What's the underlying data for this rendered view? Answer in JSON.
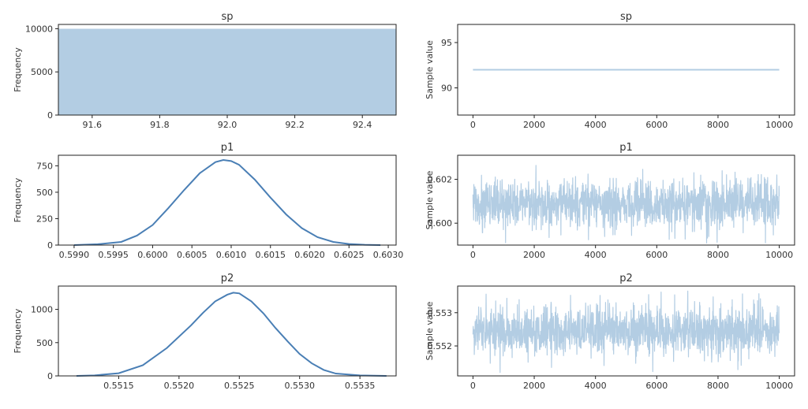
{
  "chart_data": [
    {
      "type": "bar",
      "title": "sp",
      "xlabel": "",
      "ylabel": "Frequency",
      "xlim": [
        91.5,
        92.5
      ],
      "ylim": [
        0,
        10500
      ],
      "xticks": [
        91.6,
        91.8,
        92.0,
        92.2,
        92.4
      ],
      "xtick_labels": [
        "91.6",
        "91.8",
        "92.0",
        "92.2",
        "92.4"
      ],
      "yticks": [
        0,
        5000,
        10000
      ],
      "ytick_labels": [
        "0",
        "5000",
        "10000"
      ],
      "bars": [
        {
          "x0": 91.5,
          "x1": 92.5,
          "value": 10000
        }
      ],
      "color": "#b3cde3"
    },
    {
      "type": "line",
      "title": "sp",
      "xlabel": "",
      "ylabel": "Sample value",
      "xlim": [
        -500,
        10500
      ],
      "ylim": [
        87,
        97
      ],
      "xticks": [
        0,
        2000,
        4000,
        6000,
        8000,
        10000
      ],
      "xtick_labels": [
        "0",
        "2000",
        "4000",
        "6000",
        "8000",
        "10000"
      ],
      "yticks": [
        90,
        95
      ],
      "ytick_labels": [
        "90",
        "95"
      ],
      "trace": {
        "n": 10000,
        "value": 92,
        "noise": 0
      },
      "color": "#b3cde3"
    },
    {
      "type": "line",
      "title": "p1",
      "xlabel": "",
      "ylabel": "Frequency",
      "xlim": [
        0.5988,
        0.6031
      ],
      "ylim": [
        0,
        850
      ],
      "xticks": [
        0.599,
        0.5995,
        0.6,
        0.6005,
        0.601,
        0.6015,
        0.602,
        0.6025,
        0.603
      ],
      "xtick_labels": [
        "0.5990",
        "0.5995",
        "0.6000",
        "0.6005",
        "0.6010",
        "0.6015",
        "0.6020",
        "0.6025",
        "0.6030"
      ],
      "yticks": [
        0,
        250,
        500,
        750
      ],
      "ytick_labels": [
        "0",
        "250",
        "500",
        "750"
      ],
      "x": [
        0.599,
        0.5993,
        0.5996,
        0.5998,
        0.6,
        0.6002,
        0.6004,
        0.6006,
        0.6008,
        0.6009,
        0.601,
        0.6011,
        0.6013,
        0.6015,
        0.6017,
        0.6019,
        0.6021,
        0.6023,
        0.6025,
        0.6027,
        0.6029
      ],
      "y": [
        0,
        8,
        30,
        90,
        190,
        350,
        520,
        680,
        785,
        805,
        795,
        760,
        620,
        450,
        290,
        160,
        75,
        30,
        10,
        3,
        0
      ],
      "color": "#4a7fb5"
    },
    {
      "type": "line",
      "title": "p1",
      "xlabel": "",
      "ylabel": "Sample value",
      "xlim": [
        -500,
        10500
      ],
      "ylim": [
        0.599,
        0.6031
      ],
      "xticks": [
        0,
        2000,
        4000,
        6000,
        8000,
        10000
      ],
      "xtick_labels": [
        "0",
        "2000",
        "4000",
        "6000",
        "8000",
        "10000"
      ],
      "yticks": [
        0.6,
        0.602
      ],
      "ytick_labels": [
        "0.600",
        "0.602"
      ],
      "trace": {
        "n": 10000,
        "value": 0.6009,
        "noise": 0.00055,
        "min": 0.5991,
        "max": 0.6029
      },
      "color": "#b3cde3"
    },
    {
      "type": "line",
      "title": "p2",
      "xlabel": "",
      "ylabel": "Frequency",
      "xlim": [
        0.551,
        0.5538
      ],
      "ylim": [
        0,
        1350
      ],
      "xticks": [
        0.5515,
        0.552,
        0.5525,
        0.553,
        0.5535
      ],
      "xtick_labels": [
        "0.5515",
        "0.5520",
        "0.5525",
        "0.5530",
        "0.5535"
      ],
      "yticks": [
        0,
        500,
        1000
      ],
      "ytick_labels": [
        "0",
        "500",
        "1000"
      ],
      "x": [
        0.55115,
        0.5513,
        0.5515,
        0.5517,
        0.5519,
        0.5521,
        0.5522,
        0.5523,
        0.5524,
        0.55245,
        0.5525,
        0.5526,
        0.5527,
        0.5528,
        0.5529,
        0.553,
        0.5531,
        0.5532,
        0.5533,
        0.5535,
        0.55372
      ],
      "y": [
        0,
        8,
        40,
        160,
        420,
        760,
        950,
        1120,
        1220,
        1250,
        1240,
        1120,
        940,
        720,
        520,
        330,
        190,
        90,
        35,
        8,
        0
      ],
      "color": "#4a7fb5"
    },
    {
      "type": "line",
      "title": "p2",
      "xlabel": "",
      "ylabel": "Sample value",
      "xlim": [
        -500,
        10500
      ],
      "ylim": [
        0.5511,
        0.5538
      ],
      "xticks": [
        0,
        2000,
        4000,
        6000,
        8000,
        10000
      ],
      "xtick_labels": [
        "0",
        "2000",
        "4000",
        "6000",
        "8000",
        "10000"
      ],
      "yticks": [
        0.552,
        0.553
      ],
      "ytick_labels": [
        "0.552",
        "0.553"
      ],
      "trace": {
        "n": 10000,
        "value": 0.55245,
        "noise": 0.00036,
        "min": 0.5512,
        "max": 0.5537
      },
      "color": "#b3cde3"
    }
  ]
}
